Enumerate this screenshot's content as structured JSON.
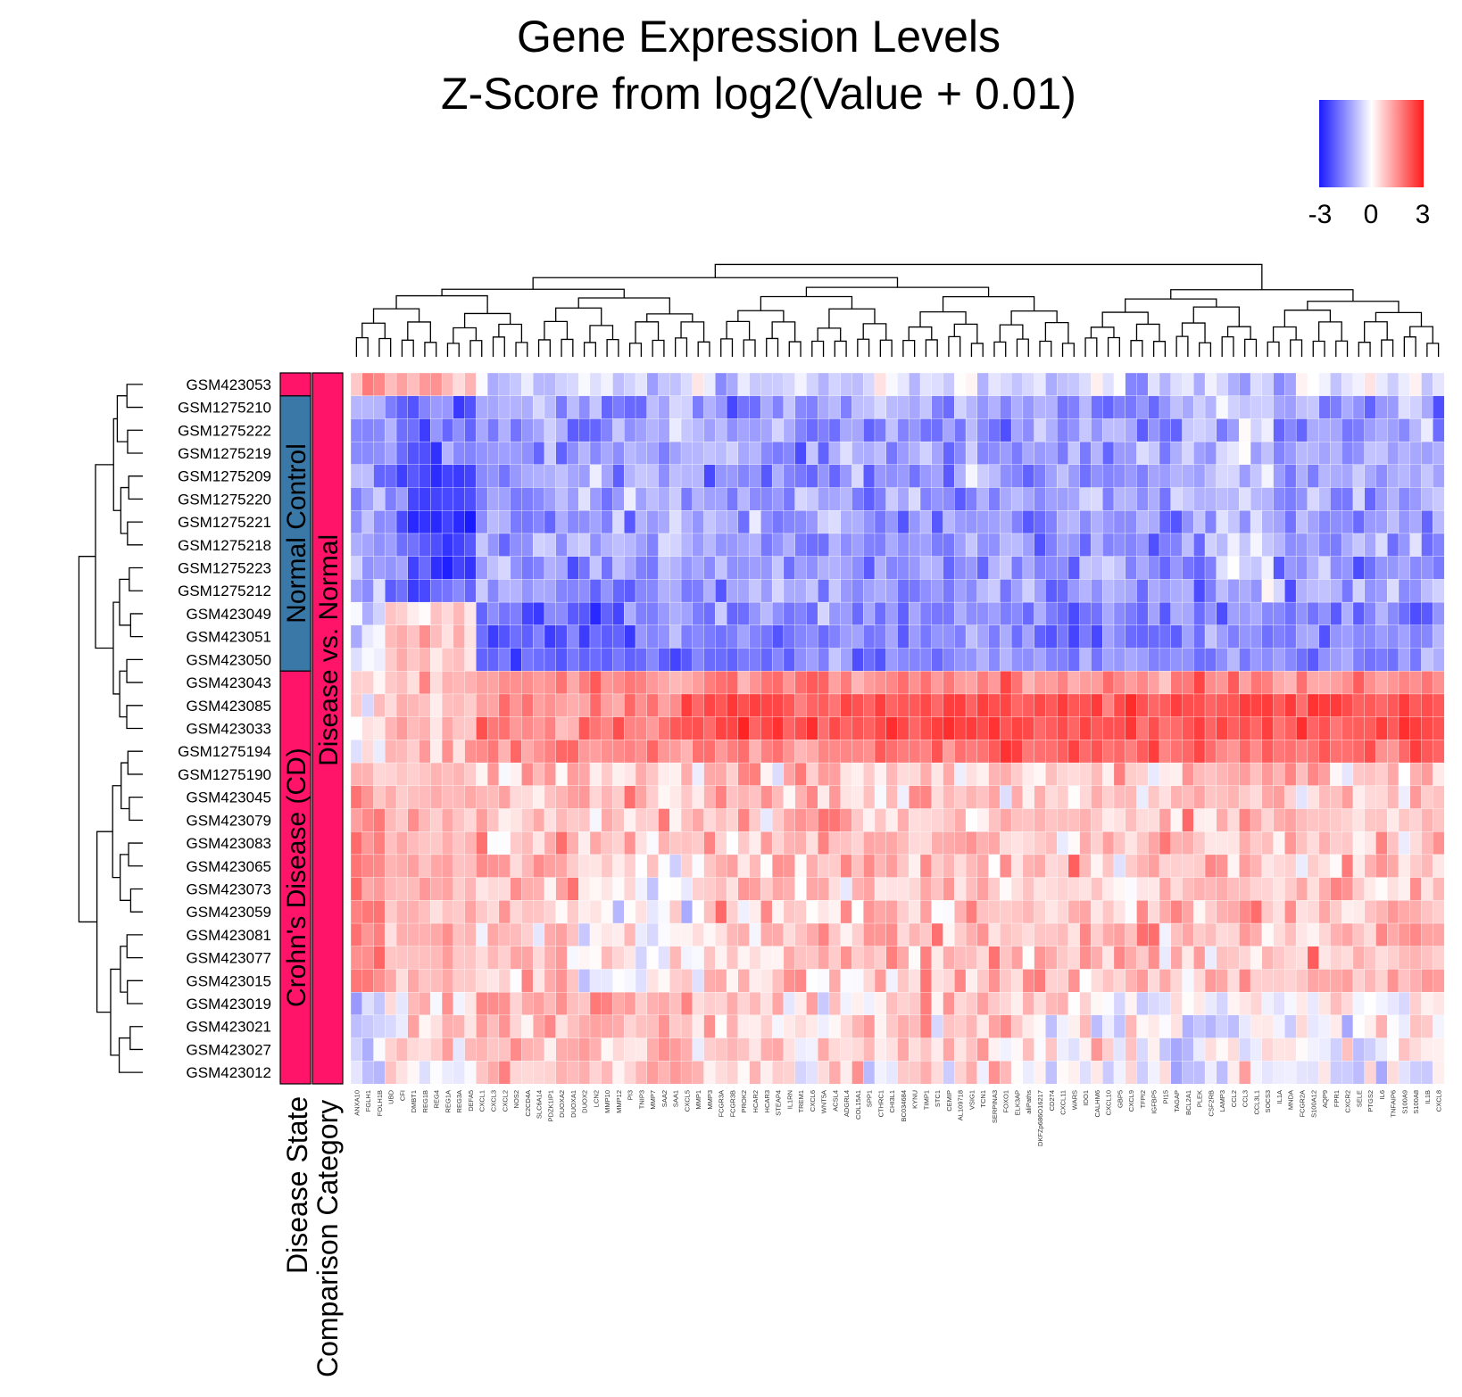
{
  "chart_data": {
    "type": "heatmap",
    "title": "Gene Expression Levels",
    "subtitle": "Z-Score from log2(Value + 0.01)",
    "colorbar": {
      "ticks": [
        "-3",
        "0",
        "3"
      ],
      "min": -3,
      "max": 3,
      "colors": {
        "low": "#1a1aff",
        "mid": "#ffffff",
        "high": "#ff1a1a"
      }
    },
    "rows": [
      "GSM423053",
      "GSM1275210",
      "GSM1275222",
      "GSM1275219",
      "GSM1275209",
      "GSM1275220",
      "GSM1275221",
      "GSM1275218",
      "GSM1275223",
      "GSM1275212",
      "GSM423049",
      "GSM423051",
      "GSM423050",
      "GSM423043",
      "GSM423085",
      "GSM423033",
      "GSM1275194",
      "GSM1275190",
      "GSM423045",
      "GSM423079",
      "GSM423083",
      "GSM423065",
      "GSM423073",
      "GSM423059",
      "GSM423081",
      "GSM423077",
      "GSM423015",
      "GSM423019",
      "GSM423021",
      "GSM423027",
      "GSM423012"
    ],
    "columns": [
      "ANXA10",
      "FGLH1",
      "FOLH1B",
      "UBD",
      "CFI",
      "DMBT1",
      "REG1B",
      "REG4",
      "REG1A",
      "REG3A",
      "DEFA5",
      "CXCL1",
      "CXCL3",
      "CXCL2",
      "NOS2",
      "C2CD4A",
      "SLC6A14",
      "PDZK1IP1",
      "DUOXA2",
      "DUOXA1",
      "DUOX2",
      "LCN2",
      "MMP10",
      "MMP12",
      "PI3",
      "TNIP3",
      "MMP7",
      "SAA2",
      "SAA1",
      "CXCL5",
      "MMP1",
      "MMP3",
      "FCGR3A",
      "FCGR3B",
      "PROK2",
      "HCAR2",
      "HCAR3",
      "STEAP4",
      "IL1RN",
      "TREM1",
      "CXCL6",
      "WNT5A",
      "ACSL4",
      "ADGRL4",
      "COL15A1",
      "SPP1",
      "CTHRC1",
      "CHI3L1",
      "BC034684",
      "KYNU",
      "TIMP1",
      "STC1",
      "CEMIP",
      "AL109718",
      "VSIG1",
      "TCN1",
      "SERPINA3",
      "FOXO1",
      "ELK3AP",
      "aliPaths",
      "DKFZp686O16217",
      "CD274",
      "CXCL11",
      "WARS",
      "IDO1",
      "CALHM6",
      "CXCL10",
      "GBP5",
      "CXCL9",
      "TFPI2",
      "IGFBP5",
      "PI15",
      "TAGAP",
      "BCL2A1",
      "PLEK",
      "CSF2RB",
      "LAMP3",
      "CCL2",
      "CCL3",
      "CCL3L1",
      "SOCS3",
      "IL1A",
      "MNDA",
      "FCGR2A",
      "S100A12",
      "AQP9",
      "FPR1",
      "CXCR2",
      "SELE",
      "PTGS2",
      "IL6",
      "TNFAIP6",
      "S100A9",
      "S100A8",
      "IL1B",
      "CXCL8"
    ],
    "row_groups": [
      {
        "label": "Normal Control",
        "start": 1,
        "end": 12,
        "color": "#3a78a8"
      },
      {
        "label": "Crohn's Disease (CD)",
        "start": 13,
        "end": 30,
        "color": "#ff1469"
      }
    ],
    "comparison_groups": [
      {
        "label": "Disease vs. Normal",
        "color": "#ff1469"
      }
    ],
    "first_row_state_color": "#ff1469",
    "track_labels": {
      "state": "Disease State",
      "comparison": "Comparison Category"
    },
    "values_estimated": "approximate z-score pattern read from cell colours"
  }
}
